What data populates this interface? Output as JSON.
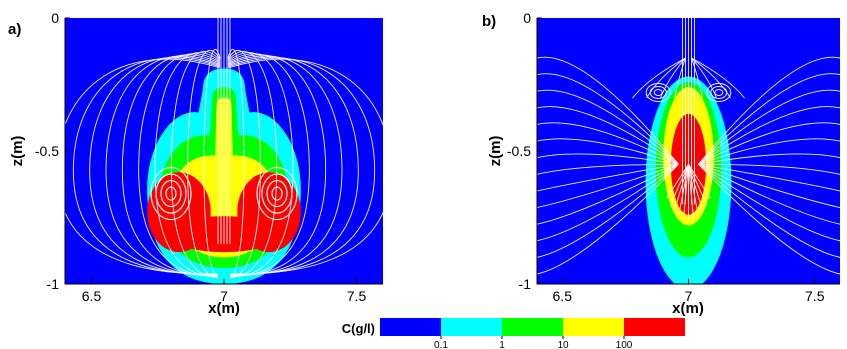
{
  "chart_data": [
    {
      "type": "heatmap",
      "panel_label": "a)",
      "xlabel": "x(m)",
      "ylabel": "z(m)",
      "xlim": [
        6.4,
        7.6
      ],
      "ylim": [
        -1,
        0
      ],
      "x_ticks": [
        {
          "value": 6.5,
          "label": "6.5"
        },
        {
          "value": 7,
          "label": "7"
        },
        {
          "value": 7.5,
          "label": "7.5"
        }
      ],
      "y_ticks": [
        {
          "value": 0,
          "label": "0"
        },
        {
          "value": -0.5,
          "label": "-0.5"
        },
        {
          "value": -1,
          "label": "-1"
        }
      ],
      "concentration_zones": [
        {
          "level": "0.1",
          "shape": "bulb",
          "cx": 7,
          "cy": -0.64,
          "rx": 0.29,
          "ry_top": 0.3,
          "ry_bottom": 0.36,
          "neck_top": -0.19,
          "neck_width": 0.08,
          "color": "#00ffff"
        },
        {
          "level": "1",
          "shape": "bulb",
          "cx": 7,
          "cy": -0.65,
          "rx": 0.24,
          "ry_top": 0.22,
          "ry_bottom": 0.29,
          "neck_top": -0.26,
          "neck_width": 0.045,
          "color": "#00ff00"
        },
        {
          "level": "10",
          "shape": "bulb",
          "cx": 7,
          "cy": -0.66,
          "rx": 0.19,
          "ry_top": 0.15,
          "ry_bottom": 0.24,
          "neck_top": -0.3,
          "neck_width": 0.028,
          "color": "#ffff00"
        },
        {
          "level": "100",
          "shape": "lobes",
          "centers": [
            [
              6.83,
              -0.73
            ],
            [
              7.17,
              -0.73
            ]
          ],
          "rx": 0.12,
          "ry": 0.15,
          "color": "#ff0000"
        }
      ],
      "vortex_centers": [
        [
          6.8,
          -0.66
        ],
        [
          7.2,
          -0.66
        ]
      ]
    },
    {
      "type": "heatmap",
      "panel_label": "b)",
      "xlabel": "x(m)",
      "ylabel": "z(m)",
      "xlim": [
        6.4,
        7.6
      ],
      "ylim": [
        -1,
        0
      ],
      "x_ticks": [
        {
          "value": 6.5,
          "label": "6.5"
        },
        {
          "value": 7,
          "label": "7"
        },
        {
          "value": 7.5,
          "label": "7.5"
        }
      ],
      "y_ticks": [
        {
          "value": 0,
          "label": "0"
        },
        {
          "value": -0.5,
          "label": "-0.5"
        },
        {
          "value": -1,
          "label": "-1"
        }
      ],
      "concentration_zones": [
        {
          "level": "0.1",
          "shape": "ellipse",
          "cx": 7,
          "cy": -0.62,
          "rx": 0.17,
          "ry": 0.4,
          "color": "#00ffff"
        },
        {
          "level": "1",
          "shape": "ellipse",
          "cx": 7,
          "cy": -0.57,
          "rx": 0.13,
          "ry": 0.33,
          "color": "#00ff00"
        },
        {
          "level": "10",
          "shape": "ellipse",
          "cx": 7,
          "cy": -0.52,
          "rx": 0.1,
          "ry": 0.26,
          "color": "#ffff00"
        },
        {
          "level": "100",
          "shape": "ellipse",
          "cx": 7,
          "cy": -0.55,
          "rx": 0.07,
          "ry": 0.19,
          "color": "#ff0000"
        }
      ],
      "vortex_centers": [
        [
          6.88,
          -0.28
        ],
        [
          7.12,
          -0.28
        ]
      ]
    }
  ],
  "legend": {
    "title": "C(g/l)",
    "bins": [
      {
        "color": "#0000ff"
      },
      {
        "color": "#00ffff"
      },
      {
        "color": "#00ff00"
      },
      {
        "color": "#ffff00"
      },
      {
        "color": "#ff0000"
      }
    ],
    "tick_labels": [
      "0.1",
      "1",
      "10",
      "100"
    ]
  },
  "colors": {
    "background_field": "#0000ff",
    "streamline": "#ffffff",
    "axis": "#000000"
  }
}
